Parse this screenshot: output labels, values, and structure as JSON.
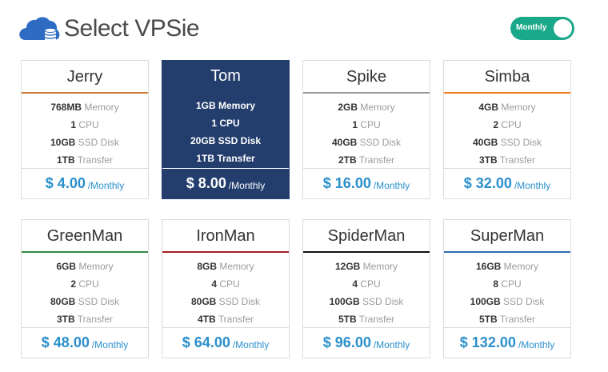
{
  "header": {
    "title": "Select VPSie",
    "logo_icon": "cloud-database-icon",
    "toggle_label": "Monthly"
  },
  "colors": {
    "accent_teal": "#1aa88a",
    "selected_navy": "#233d6d",
    "price_blue": "#2a8fcc"
  },
  "plans": [
    {
      "name": "Jerry",
      "accent": "#c97a37",
      "selected": false,
      "memory": "768MB",
      "memory_label": "Memory",
      "cpu": "1",
      "cpu_label": "CPU",
      "disk": "10GB",
      "disk_label": "SSD Disk",
      "transfer": "1TB",
      "transfer_label": "Transfer",
      "price": "$ 4.00",
      "period": "/Monthly"
    },
    {
      "name": "Tom",
      "accent": "#233d6d",
      "selected": true,
      "memory": "1GB",
      "memory_label": "Memory",
      "cpu": "1",
      "cpu_label": "CPU",
      "disk": "20GB",
      "disk_label": "SSD Disk",
      "transfer": "1TB",
      "transfer_label": "Transfer",
      "price": "$ 8.00",
      "period": "/Monthly"
    },
    {
      "name": "Spike",
      "accent": "#9a9a9a",
      "selected": false,
      "memory": "2GB",
      "memory_label": "Memory",
      "cpu": "1",
      "cpu_label": "CPU",
      "disk": "40GB",
      "disk_label": "SSD Disk",
      "transfer": "2TB",
      "transfer_label": "Transfer",
      "price": "$ 16.00",
      "period": "/Monthly"
    },
    {
      "name": "Simba",
      "accent": "#f07e1e",
      "selected": false,
      "memory": "4GB",
      "memory_label": "Memory",
      "cpu": "2",
      "cpu_label": "CPU",
      "disk": "40GB",
      "disk_label": "SSD Disk",
      "transfer": "3TB",
      "transfer_label": "Transfer",
      "price": "$ 32.00",
      "period": "/Monthly"
    },
    {
      "name": "GreenMan",
      "accent": "#2e8b3e",
      "selected": false,
      "memory": "6GB",
      "memory_label": "Memory",
      "cpu": "2",
      "cpu_label": "CPU",
      "disk": "80GB",
      "disk_label": "SSD Disk",
      "transfer": "3TB",
      "transfer_label": "Transfer",
      "price": "$ 48.00",
      "period": "/Monthly"
    },
    {
      "name": "IronMan",
      "accent": "#a51d22",
      "selected": false,
      "memory": "8GB",
      "memory_label": "Memory",
      "cpu": "4",
      "cpu_label": "CPU",
      "disk": "80GB",
      "disk_label": "SSD Disk",
      "transfer": "4TB",
      "transfer_label": "Transfer",
      "price": "$ 64.00",
      "period": "/Monthly"
    },
    {
      "name": "SpiderMan",
      "accent": "#111111",
      "selected": false,
      "memory": "12GB",
      "memory_label": "Memory",
      "cpu": "4",
      "cpu_label": "CPU",
      "disk": "100GB",
      "disk_label": "SSD Disk",
      "transfer": "5TB",
      "transfer_label": "Transfer",
      "price": "$ 96.00",
      "period": "/Monthly"
    },
    {
      "name": "SuperMan",
      "accent": "#2a6fb5",
      "selected": false,
      "memory": "16GB",
      "memory_label": "Memory",
      "cpu": "8",
      "cpu_label": "CPU",
      "disk": "100GB",
      "disk_label": "SSD Disk",
      "transfer": "5TB",
      "transfer_label": "Transfer",
      "price": "$ 132.00",
      "period": "/Monthly"
    }
  ]
}
